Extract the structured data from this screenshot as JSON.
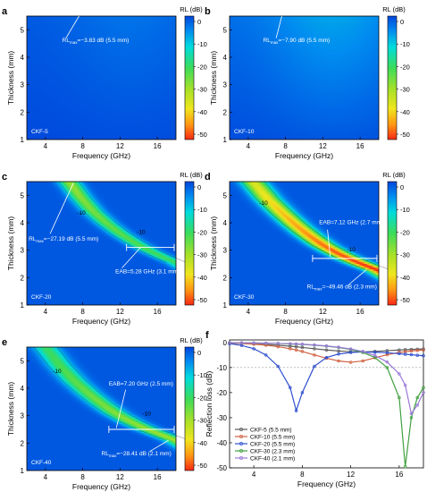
{
  "colorbar_ticks": [
    "0",
    "-10",
    "-20",
    "-30",
    "-40",
    "-50"
  ],
  "panels": [
    {
      "letter": "a",
      "sample": "CKF-5",
      "cb_title": "RL (dB)",
      "ylabel": "Thickness (mm)",
      "xlabel": "Frequency (GHz)",
      "contour_labels": [],
      "annotations": [
        {
          "pre": "RL",
          "sub": "max",
          "post": "=−3.83 dB (5.5 mm)"
        }
      ]
    },
    {
      "letter": "b",
      "sample": "CKF-10",
      "cb_title": "RL (dB)",
      "ylabel": "Thickness (mm)",
      "xlabel": "Frequency (GHz)",
      "contour_labels": [],
      "annotations": [
        {
          "pre": "RL",
          "sub": "max",
          "post": "=−7.90 dB (5.5 mm)"
        }
      ]
    },
    {
      "letter": "c",
      "sample": "CKF-20",
      "cb_title": "RL (dB)",
      "ylabel": "Thickness (mm)",
      "xlabel": "Frequency (GHz)",
      "contour_labels": [
        "-10",
        "-10"
      ],
      "annotations": [
        {
          "pre": "RL",
          "sub": "max",
          "post": "=−27.19 dB (5.5 mm)"
        },
        {
          "pre": "EAB=5.28 GHz (3.1 mm)",
          "sub": "",
          "post": ""
        }
      ]
    },
    {
      "letter": "d",
      "sample": "CKF-30",
      "cb_title": "RL (dB)",
      "ylabel": "Thickness (mm)",
      "xlabel": "Frequency (GHz)",
      "contour_labels": [
        "-10",
        "-10"
      ],
      "annotations": [
        {
          "pre": "EAB=7.12 GHz (2.7 mm)",
          "sub": "",
          "post": ""
        },
        {
          "pre": "RL",
          "sub": "max",
          "post": "=−49.46 dB (2.3 mm)"
        }
      ]
    },
    {
      "letter": "e",
      "sample": "CKF-40",
      "cb_title": "RL (dB)",
      "ylabel": "Thickness (mm)",
      "xlabel": "Frequency (GHz)",
      "contour_labels": [
        "-10",
        "-10"
      ],
      "annotations": [
        {
          "pre": "EAB=7.20 GHz (2.5 mm)",
          "sub": "",
          "post": ""
        },
        {
          "pre": "RL",
          "sub": "max",
          "post": "=−28.41 dB (2.1 mm)"
        }
      ]
    }
  ],
  "chart_data": [
    {
      "type": "heatmap",
      "panel": "a",
      "sample": "CKF-5",
      "xlabel": "Frequency (GHz)",
      "ylabel": "Thickness (mm)",
      "colorbar_label": "RL (dB)",
      "xlim": [
        2,
        18
      ],
      "ylim": [
        1,
        5.5
      ],
      "clim": [
        -50,
        0
      ],
      "x_ticks": [
        4,
        8,
        12,
        16
      ],
      "y_ticks": [
        1,
        2,
        3,
        4,
        5
      ],
      "rl_max": {
        "value_db": -3.83,
        "thickness_mm": 5.5
      }
    },
    {
      "type": "heatmap",
      "panel": "b",
      "sample": "CKF-10",
      "xlabel": "Frequency (GHz)",
      "ylabel": "Thickness (mm)",
      "colorbar_label": "RL (dB)",
      "xlim": [
        2,
        18
      ],
      "ylim": [
        1,
        5.5
      ],
      "clim": [
        -50,
        0
      ],
      "x_ticks": [
        4,
        8,
        12,
        16
      ],
      "y_ticks": [
        1,
        2,
        3,
        4,
        5
      ],
      "rl_max": {
        "value_db": -7.9,
        "thickness_mm": 5.5
      }
    },
    {
      "type": "heatmap",
      "panel": "c",
      "sample": "CKF-20",
      "xlabel": "Frequency (GHz)",
      "ylabel": "Thickness (mm)",
      "colorbar_label": "RL (dB)",
      "xlim": [
        2,
        18
      ],
      "ylim": [
        1,
        5.5
      ],
      "clim": [
        -50,
        0
      ],
      "x_ticks": [
        4,
        8,
        12,
        16
      ],
      "y_ticks": [
        1,
        2,
        3,
        4,
        5
      ],
      "ridge": {
        "x": [
          6.5,
          7.7,
          9,
          10.5,
          12,
          13.5,
          15,
          16.5,
          18
        ],
        "y": [
          5.5,
          4.95,
          4.45,
          4.0,
          3.62,
          3.3,
          3.02,
          2.78,
          2.56
        ]
      },
      "ridge_width_ghz": 1.1,
      "ridge_min_db": -27.19,
      "eab": {
        "value_ghz": 5.28,
        "thickness_mm": 3.1,
        "f_start": 12.7,
        "f_end": 18.0
      },
      "rl_max": {
        "value_db": -27.19,
        "thickness_mm": 5.5
      }
    },
    {
      "type": "heatmap",
      "panel": "d",
      "sample": "CKF-30",
      "xlabel": "Frequency (GHz)",
      "ylabel": "Thickness (mm)",
      "colorbar_label": "RL (dB)",
      "xlim": [
        2,
        18
      ],
      "ylim": [
        1,
        5.5
      ],
      "clim": [
        -50,
        0
      ],
      "x_ticks": [
        4,
        8,
        12,
        16
      ],
      "y_ticks": [
        1,
        2,
        3,
        4,
        5
      ],
      "ridge": {
        "x": [
          4.5,
          6,
          7.5,
          9,
          10.5,
          12,
          13.5,
          15,
          16.5,
          18
        ],
        "y": [
          5.5,
          4.9,
          4.4,
          3.95,
          3.55,
          3.2,
          2.92,
          2.68,
          2.47,
          2.28
        ]
      },
      "ridge_width_ghz": 1.3,
      "ridge_min_db": -49.46,
      "eab": {
        "value_ghz": 7.12,
        "thickness_mm": 2.7,
        "f_start": 10.9,
        "f_end": 18.0
      },
      "rl_max": {
        "value_db": -49.46,
        "thickness_mm": 2.3
      }
    },
    {
      "type": "heatmap",
      "panel": "e",
      "sample": "CKF-40",
      "xlabel": "Frequency (GHz)",
      "ylabel": "Thickness (mm)",
      "colorbar_label": "RL (dB)",
      "xlim": [
        2,
        18
      ],
      "ylim": [
        1,
        5.5
      ],
      "clim": [
        -50,
        0
      ],
      "x_ticks": [
        4,
        8,
        12,
        16
      ],
      "y_ticks": [
        1,
        2,
        3,
        4,
        5
      ],
      "ridge": {
        "x": [
          4,
          5.5,
          7,
          8.5,
          10,
          11.5,
          13,
          14.5,
          16,
          18
        ],
        "y": [
          5.5,
          4.85,
          4.3,
          3.85,
          3.45,
          3.1,
          2.82,
          2.58,
          2.38,
          2.12
        ]
      },
      "ridge_width_ghz": 1.3,
      "ridge_min_db": -28.41,
      "eab": {
        "value_ghz": 7.2,
        "thickness_mm": 2.5,
        "f_start": 10.8,
        "f_end": 18.0
      },
      "rl_max": {
        "value_db": -28.41,
        "thickness_mm": 2.1
      }
    },
    {
      "type": "line",
      "panel": "f",
      "xlabel": "Frequency (GHz)",
      "ylabel": "Reflection loss (dB)",
      "xlim": [
        2,
        18
      ],
      "ylim": [
        -50,
        1
      ],
      "x_ticks": [
        4,
        8,
        12,
        16
      ],
      "y_ticks": [
        0,
        -10,
        -20,
        -30,
        -40,
        -50
      ],
      "threshold_db": -10,
      "x": [
        2,
        3,
        4,
        5,
        6,
        7,
        7.5,
        8,
        9,
        10,
        11,
        12,
        13,
        14,
        15,
        16,
        16.5,
        17,
        17.5,
        18
      ],
      "series": [
        {
          "name": "CKF-5 (5.5 mm)",
          "color": "#5a5a5a",
          "values": [
            -0.3,
            -0.4,
            -0.6,
            -0.8,
            -1.1,
            -1.5,
            -1.7,
            -2.0,
            -2.5,
            -3.0,
            -3.4,
            -3.7,
            -3.8,
            -3.6,
            -3.3,
            -3.0,
            -2.9,
            -2.8,
            -2.7,
            -2.6
          ]
        },
        {
          "name": "CKF-10 (5.5 mm)",
          "color": "#d06040",
          "values": [
            -0.2,
            -0.4,
            -0.7,
            -1.1,
            -1.7,
            -2.5,
            -3.0,
            -3.6,
            -5.0,
            -6.3,
            -7.4,
            -7.9,
            -7.4,
            -6.1,
            -4.9,
            -4.0,
            -3.7,
            -3.4,
            -3.2,
            -3.0
          ]
        },
        {
          "name": "CKF-20 (5.5 mm)",
          "color": "#3050d0",
          "values": [
            -0.5,
            -1.2,
            -2.5,
            -5.0,
            -9.5,
            -18.0,
            -27.2,
            -20.0,
            -9.5,
            -6.0,
            -4.6,
            -4.0,
            -3.8,
            -3.9,
            -4.1,
            -4.5,
            -4.7,
            -4.9,
            -5.1,
            -5.3
          ]
        },
        {
          "name": "CKF-30 (2.3 mm)",
          "color": "#40a040",
          "values": [
            -0.1,
            -0.15,
            -0.2,
            -0.3,
            -0.4,
            -0.6,
            -0.7,
            -0.8,
            -1.1,
            -1.5,
            -2.0,
            -2.8,
            -4.0,
            -6.0,
            -10.0,
            -22.0,
            -49.5,
            -30.0,
            -22.0,
            -18.0
          ]
        },
        {
          "name": "CKF-40 (2.1 mm)",
          "color": "#9a7ad8",
          "values": [
            -0.1,
            -0.15,
            -0.2,
            -0.3,
            -0.4,
            -0.5,
            -0.6,
            -0.7,
            -1.0,
            -1.4,
            -1.9,
            -2.6,
            -3.6,
            -5.2,
            -7.8,
            -12.5,
            -17.0,
            -28.4,
            -25.0,
            -20.0
          ]
        }
      ]
    }
  ]
}
